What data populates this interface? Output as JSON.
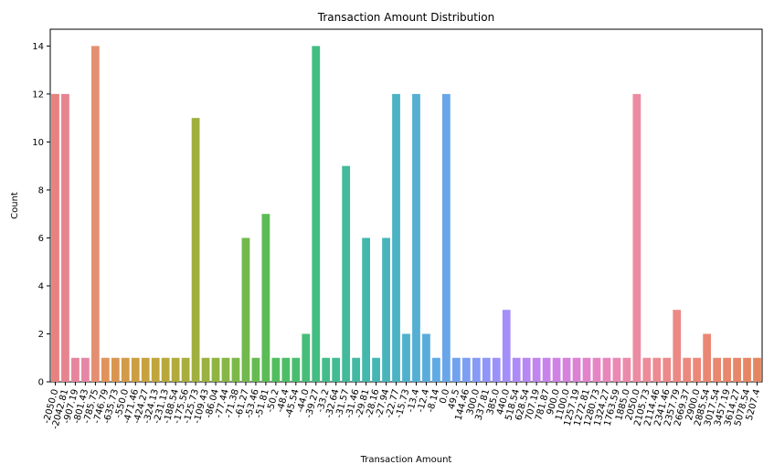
{
  "chart_data": {
    "type": "bar",
    "title": "Transaction Amount Distribution",
    "xlabel": "Transaction Amount",
    "ylabel": "Count",
    "ylim": [
      0,
      14.7
    ],
    "yticks": [
      0,
      2,
      4,
      6,
      8,
      10,
      12,
      14
    ],
    "grid": false,
    "legend": "none",
    "categories": [
      "-2050.0",
      "-2042.81",
      "-907.19",
      "-801.43",
      "-785.75",
      "-746.79",
      "-635.73",
      "-550.0",
      "-471.46",
      "-424.27",
      "-324.13",
      "-231.13",
      "-188.54",
      "-175.56",
      "-125.73",
      "-109.43",
      "-86.04",
      "-77.44",
      "-71.38",
      "-61.27",
      "-53.46",
      "-51.81",
      "-50.2",
      "-48.4",
      "-45.54",
      "-44.0",
      "-39.27",
      "-33.2",
      "-32.64",
      "-31.57",
      "-31.46",
      "-29.81",
      "-28.16",
      "-27.94",
      "-22.77",
      "-15.73",
      "-13.4",
      "-12.4",
      "-8.14",
      "0.0",
      "49.5",
      "144.46",
      "300.0",
      "337.81",
      "385.0",
      "440.0",
      "518.54",
      "628.54",
      "707.19",
      "781.87",
      "900.0",
      "1100.0",
      "1257.19",
      "1272.81",
      "1280.73",
      "1324.27",
      "1763.59",
      "1885.0",
      "2050.0",
      "2105.73",
      "2114.46",
      "2341.46",
      "2357.79",
      "2669.37",
      "2900.0",
      "2885.54",
      "3017.54",
      "3457.19",
      "3614.27",
      "5078.54",
      "5207.4"
    ],
    "values": [
      12,
      12,
      1,
      1,
      14,
      1,
      1,
      1,
      1,
      1,
      1,
      1,
      1,
      1,
      11,
      1,
      1,
      1,
      1,
      6,
      1,
      7,
      1,
      1,
      1,
      2,
      14,
      1,
      1,
      9,
      1,
      6,
      1,
      6,
      12,
      2,
      12,
      2,
      1,
      12,
      1,
      1,
      1,
      1,
      1,
      3,
      1,
      1,
      1,
      1,
      1,
      1,
      1,
      1,
      1,
      1,
      1,
      1,
      12,
      1,
      1,
      1,
      3,
      1,
      1,
      2,
      1,
      1,
      1,
      1,
      1
    ],
    "colors": [
      "#e8817f",
      "#e7838f",
      "#e6859c",
      "#e587a4",
      "#e48f72",
      "#e0935b",
      "#d89650",
      "#d29a49",
      "#cc9e43",
      "#c6a23e",
      "#bfa53c",
      "#b8a83b",
      "#b1aa3c",
      "#a9ad3d",
      "#a1af3e",
      "#99b240",
      "#90b442",
      "#86b645",
      "#7cb848",
      "#71b94c",
      "#66bb50",
      "#5bbc56",
      "#52bd5e",
      "#4cbd67",
      "#48bd70",
      "#46bd79",
      "#44bd82",
      "#43bc8a",
      "#42bb93",
      "#42ba9b",
      "#43b9a3",
      "#44b8ab",
      "#46b6b3",
      "#48b5bb",
      "#4bb3c3",
      "#4fb1cb",
      "#54afd3",
      "#5aacdb",
      "#61a9e2",
      "#69a6e9",
      "#72a2ef",
      "#7c9ef3",
      "#869af6",
      "#9096f8",
      "#9a92f9",
      "#a48ef8",
      "#ae8af6",
      "#b787f3",
      "#c085ef",
      "#c883ea",
      "#cf82e4",
      "#d682dd",
      "#dc82d5",
      "#e183cd",
      "#e585c4",
      "#e887bc",
      "#ea89b3",
      "#eb8bab",
      "#ec8ca2",
      "#ec8c9a",
      "#ec8b92",
      "#ec8a8b",
      "#ec8985",
      "#ec897f",
      "#eb8879",
      "#ea8774",
      "#e9876f",
      "#e8876b",
      "#e78668",
      "#e68665",
      "#e58663"
    ]
  }
}
